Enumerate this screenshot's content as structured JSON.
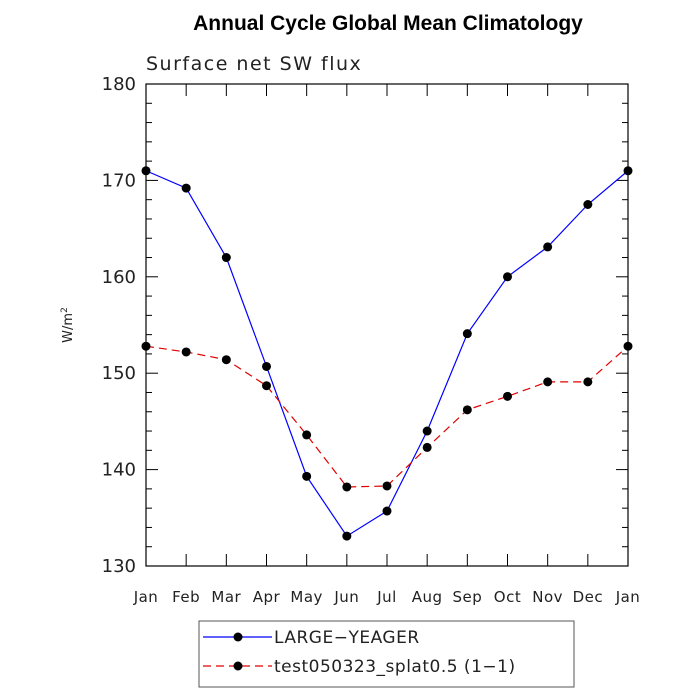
{
  "chart_data": {
    "type": "line",
    "title": "Annual Cycle Global Mean Climatology",
    "subtitle": "Surface net SW flux",
    "ylabel": "W/m",
    "ylabel_superscript": "2",
    "xlabel": "",
    "categories": [
      "Jan",
      "Feb",
      "Mar",
      "Apr",
      "May",
      "Jun",
      "Jul",
      "Aug",
      "Sep",
      "Oct",
      "Nov",
      "Dec",
      "Jan"
    ],
    "ylim": [
      130,
      180
    ],
    "yticks": [
      130,
      140,
      150,
      160,
      170,
      180
    ],
    "grid": false,
    "legend_placement": "bottom",
    "series": [
      {
        "name": "LARGE−YEAGER",
        "color": "#0000ff",
        "line_style": "solid",
        "marker": "filled-circle",
        "values": [
          171.0,
          169.2,
          162.0,
          150.7,
          139.3,
          133.1,
          135.7,
          144.0,
          154.1,
          160.0,
          163.1,
          167.5,
          171.0
        ]
      },
      {
        "name": "test050323_splat0.5 (1−1)",
        "color": "#e00000",
        "line_style": "dashed",
        "marker": "filled-circle",
        "values": [
          152.8,
          152.2,
          151.4,
          148.7,
          143.6,
          138.2,
          138.3,
          142.3,
          146.2,
          147.6,
          149.1,
          149.1,
          152.8
        ]
      }
    ]
  }
}
